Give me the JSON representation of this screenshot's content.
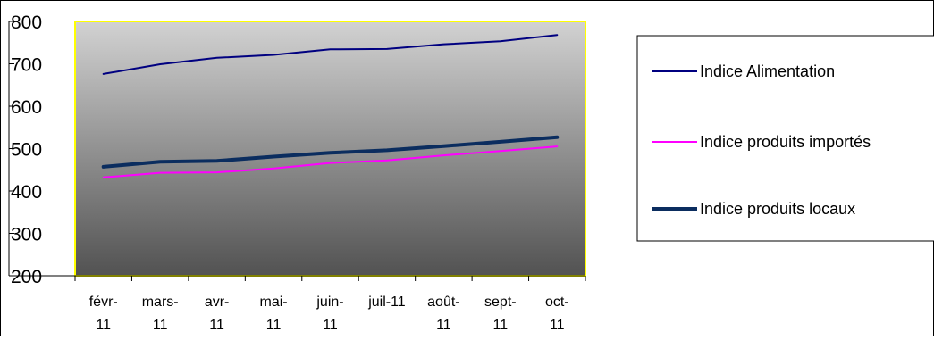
{
  "chart_data": {
    "type": "line",
    "title": "",
    "xlabel": "",
    "ylabel": "",
    "categories": [
      [
        "févr-",
        "11"
      ],
      [
        "mars-",
        "11"
      ],
      [
        "avr-",
        "11"
      ],
      [
        "mai-",
        "11"
      ],
      [
        "juin-",
        "11"
      ],
      [
        "juil-11",
        ""
      ],
      [
        "août-",
        "11"
      ],
      [
        "sept-",
        "11"
      ],
      [
        "oct-",
        "11"
      ]
    ],
    "ylim": [
      200,
      800
    ],
    "yticks": [
      200,
      300,
      400,
      500,
      600,
      700,
      800
    ],
    "grid": false,
    "legend_position": "right",
    "series": [
      {
        "name": "Indice Alimentation",
        "color": "#000080",
        "width": "thin",
        "values": [
          676,
          699,
          714,
          721,
          734,
          735,
          746,
          753,
          768
        ]
      },
      {
        "name": "Indice produits importés",
        "color": "#ff00ff",
        "width": "thin",
        "values": [
          432,
          443,
          444,
          453,
          466,
          472,
          484,
          494,
          505
        ]
      },
      {
        "name": "Indice produits locaux",
        "color": "#0b2d5f",
        "width": "thick",
        "values": [
          457,
          469,
          471,
          481,
          490,
          496,
          506,
          516,
          527
        ]
      }
    ],
    "colors": {
      "plot_top": "#d2d2d2",
      "plot_bottom": "#525252",
      "plot_border": "#ffff00"
    }
  }
}
